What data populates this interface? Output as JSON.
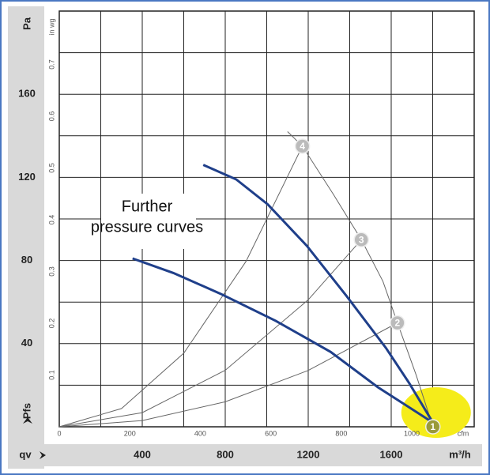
{
  "chart_data": {
    "type": "line",
    "y_unit": "Pa",
    "y2_unit": "in wg",
    "y_axis_label": "Pfs",
    "x_axis_label": "qv",
    "x_unit": "m³/h",
    "x2_unit": "cfm",
    "annotation": [
      "Further",
      "pressure curves"
    ],
    "xlim": [
      0,
      2000
    ],
    "xticks": [
      400,
      800,
      1200,
      1600
    ],
    "x2lim": [
      0,
      1177
    ],
    "x2ticks": [
      0,
      200,
      400,
      600,
      800,
      1000
    ],
    "ylim": [
      0,
      200
    ],
    "yticks": [
      40,
      80,
      120,
      160
    ],
    "y2lim": [
      0,
      0.803
    ],
    "y2ticks": [
      0.1,
      0.2,
      0.3,
      0.4,
      0.5,
      0.6,
      0.7
    ],
    "grid": true,
    "series": [
      {
        "color": "#1f3f8a",
        "width": 3,
        "x": [
          694,
          853,
          1005,
          1194,
          1384,
          1574,
          1687,
          1801
        ],
        "values": [
          126,
          119,
          107,
          87,
          63,
          38,
          21,
          2
        ]
      },
      {
        "color": "#1f3f8a",
        "width": 3,
        "x": [
          353,
          550,
          777,
          1043,
          1308,
          1536,
          1801
        ],
        "values": [
          81,
          74,
          64,
          51,
          36,
          19,
          2
        ]
      },
      {
        "color": "#666666",
        "width": 1,
        "x": [
          0,
          300,
          600,
          900,
          1172
        ],
        "values": [
          0,
          8.8,
          35.4,
          79.6,
          135
        ]
      },
      {
        "color": "#666666",
        "width": 1,
        "x": [
          0,
          400,
          800,
          1200,
          1456
        ],
        "values": [
          0,
          6.8,
          27.2,
          61.1,
          90
        ]
      },
      {
        "color": "#666666",
        "width": 1,
        "x": [
          0,
          400,
          800,
          1200,
          1630
        ],
        "values": [
          0,
          3.0,
          12.0,
          27.1,
          50
        ]
      },
      {
        "color": "#666666",
        "width": 1,
        "x": [
          1100,
          1172,
          1320,
          1456,
          1560,
          1630,
          1720,
          1801
        ],
        "values": [
          142,
          135,
          112,
          90,
          70,
          50,
          25,
          0
        ]
      }
    ],
    "points": [
      {
        "label": "4",
        "x": 1172,
        "y": 135,
        "color": "#bbbbbb"
      },
      {
        "label": "3",
        "x": 1456,
        "y": 90,
        "color": "#bbbbbb"
      },
      {
        "label": "2",
        "x": 1630,
        "y": 50,
        "color": "#bbbbbb"
      },
      {
        "label": "1",
        "x": 1801,
        "y": 0,
        "color": "#9a9a3a",
        "highlight": "#f5ec1a"
      }
    ]
  }
}
